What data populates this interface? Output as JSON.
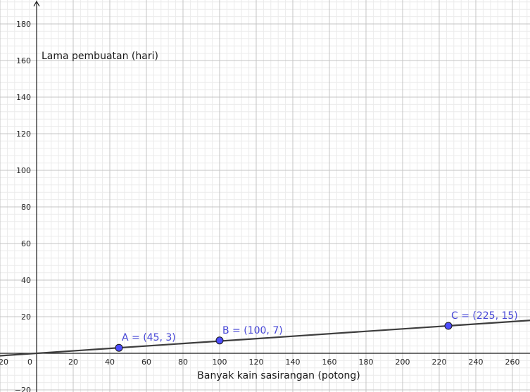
{
  "chart_data": {
    "type": "line",
    "xlabel": "Banyak kain sasirangan (potong)",
    "ylabel": "Lama pembuatan (hari)",
    "xlim": [
      -20,
      270
    ],
    "ylim": [
      -20,
      190
    ],
    "x_ticks": [
      "20",
      "0",
      "20",
      "40",
      "60",
      "80",
      "100",
      "120",
      "140",
      "160",
      "180",
      "200",
      "220",
      "240",
      "260"
    ],
    "y_ticks": [
      "180",
      "160",
      "140",
      "120",
      "100",
      "80",
      "60",
      "40",
      "20",
      "−20"
    ],
    "grid": true,
    "line": {
      "slope": 0.0667,
      "intercept": 0,
      "color": "#3d3d3d"
    },
    "points": [
      {
        "name": "A",
        "x": 45,
        "y": 3,
        "label": "A = (45, 3)"
      },
      {
        "name": "B",
        "x": 100,
        "y": 7,
        "label": "B = (100, 7)"
      },
      {
        "name": "C",
        "x": 225,
        "y": 15,
        "label": "C = (225, 15)"
      }
    ],
    "point_color": "#4d4dff",
    "label_color": "#4545d6"
  }
}
